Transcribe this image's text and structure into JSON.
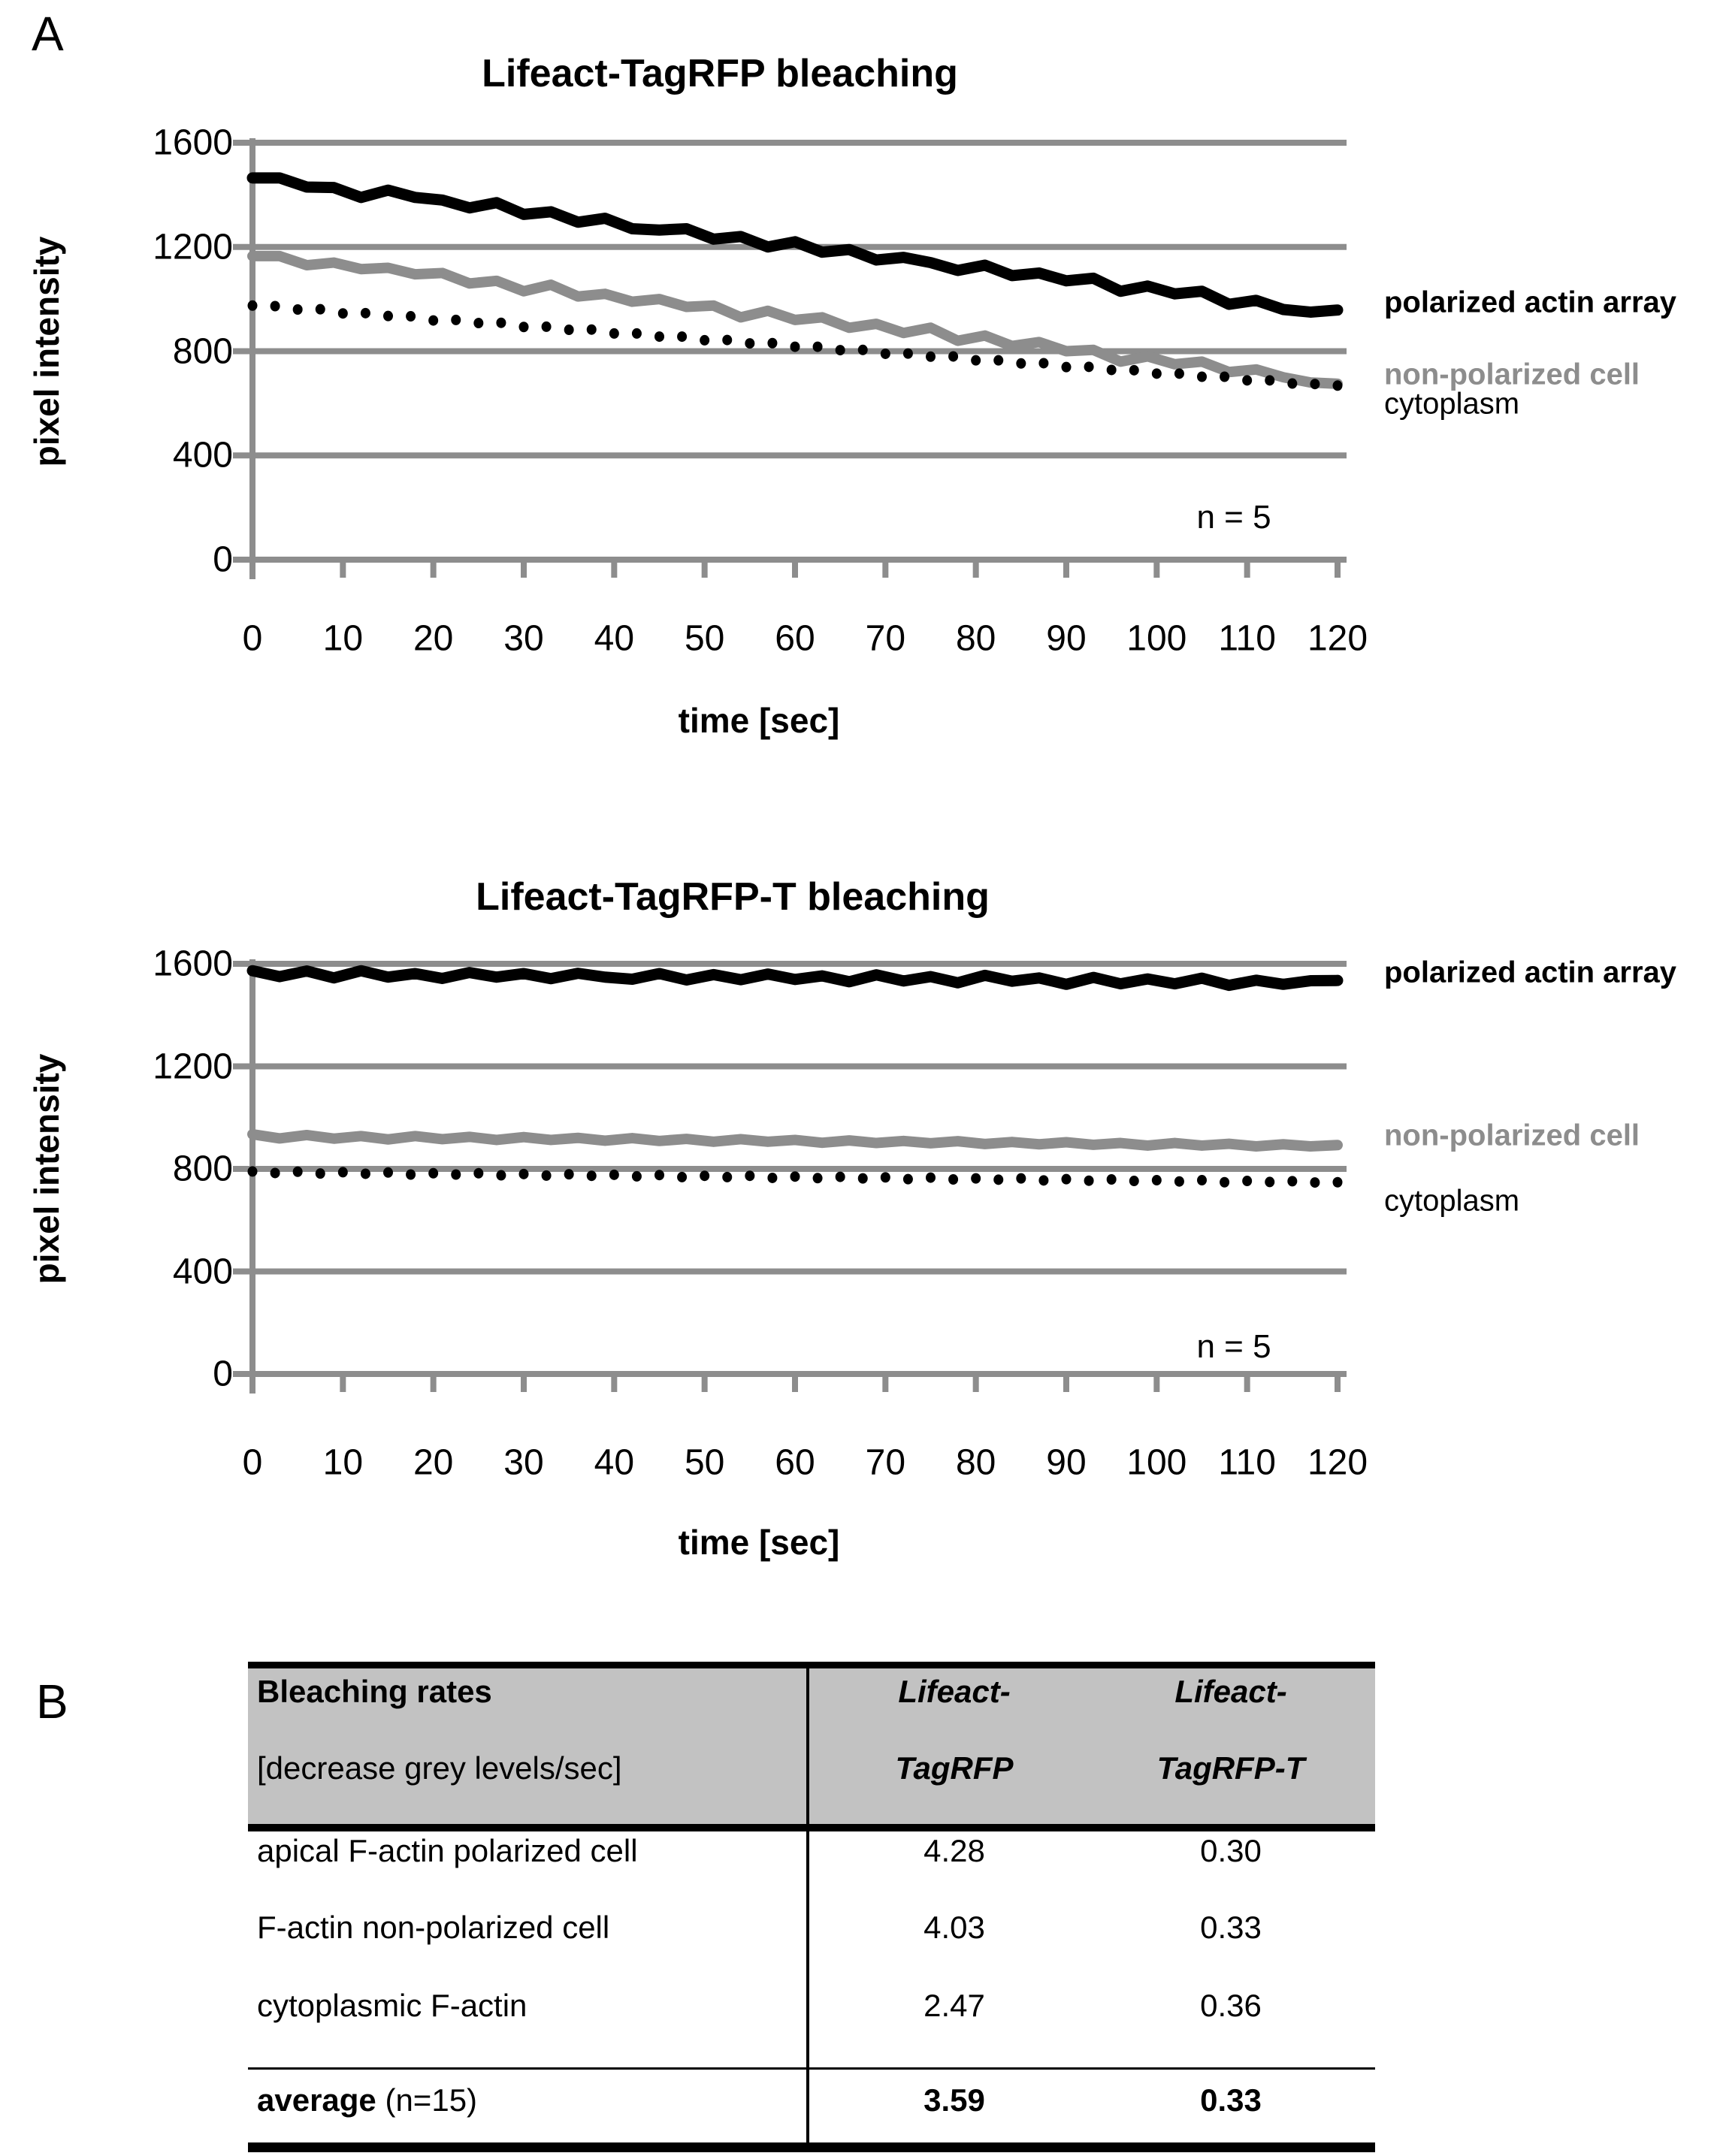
{
  "figure": {
    "panel_a": "A",
    "panel_b": "B"
  },
  "colors": {
    "black": "#000000",
    "gray_series": "#8d8d8d",
    "grid": "#8d8d8d",
    "table_header_bg": "#c2c2c2"
  },
  "chart_data": [
    {
      "type": "line",
      "title": "Lifeact-TagRFP bleaching",
      "xlabel": "time [sec]",
      "ylabel": "pixel intensity",
      "annotation": "n = 5",
      "xlim": [
        0,
        120
      ],
      "ylim": [
        0,
        1600
      ],
      "xticks": [
        0,
        10,
        20,
        30,
        40,
        50,
        60,
        70,
        80,
        90,
        100,
        110,
        120
      ],
      "yticks": [
        0,
        400,
        800,
        1200,
        1600
      ],
      "grid": "horizontal",
      "legend_position": "right",
      "series": [
        {
          "name": "polarized actin array",
          "style": "solid",
          "color": "#000000",
          "bold_label": true,
          "t0": 0,
          "dt": 3,
          "values": [
            1465,
            1465,
            1430,
            1428,
            1390,
            1418,
            1390,
            1380,
            1350,
            1370,
            1325,
            1335,
            1295,
            1310,
            1270,
            1265,
            1270,
            1230,
            1240,
            1200,
            1220,
            1180,
            1190,
            1150,
            1160,
            1140,
            1110,
            1130,
            1090,
            1100,
            1070,
            1080,
            1030,
            1050,
            1020,
            1030,
            980,
            995,
            960,
            950,
            958
          ]
        },
        {
          "name": "non-polarized cell",
          "style": "solid",
          "color": "#8d8d8d",
          "bold_label": true,
          "t0": 0,
          "dt": 3,
          "values": [
            1165,
            1165,
            1130,
            1140,
            1115,
            1120,
            1095,
            1100,
            1060,
            1070,
            1030,
            1055,
            1010,
            1020,
            990,
            1000,
            970,
            975,
            930,
            955,
            920,
            930,
            890,
            905,
            870,
            890,
            840,
            860,
            820,
            835,
            800,
            805,
            760,
            780,
            750,
            760,
            720,
            730,
            700,
            680,
            675
          ]
        },
        {
          "name": "cytoplasm",
          "style": "dotted",
          "color": "#000000",
          "bold_label": false,
          "t0": 0,
          "dt": 2.5,
          "values": [
            975,
            973,
            960,
            961,
            945,
            946,
            935,
            934,
            918,
            920,
            908,
            909,
            893,
            894,
            882,
            883,
            868,
            868,
            856,
            856,
            842,
            843,
            830,
            831,
            817,
            817,
            804,
            805,
            790,
            791,
            779,
            780,
            765,
            765,
            753,
            754,
            739,
            740,
            728,
            727,
            714,
            714,
            702,
            702,
            688,
            688,
            676,
            674,
            668
          ]
        }
      ]
    },
    {
      "type": "line",
      "title": "Lifeact-TagRFP-T bleaching",
      "xlabel": "time [sec]",
      "ylabel": "pixel intensity",
      "annotation": "n = 5",
      "xlim": [
        0,
        120
      ],
      "ylim": [
        0,
        1600
      ],
      "xticks": [
        0,
        10,
        20,
        30,
        40,
        50,
        60,
        70,
        80,
        90,
        100,
        110,
        120
      ],
      "yticks": [
        0,
        400,
        800,
        1200,
        1600
      ],
      "grid": "horizontal",
      "legend_position": "right",
      "series": [
        {
          "name": "polarized actin array",
          "style": "solid",
          "color": "#000000",
          "bold_label": true,
          "t0": 0,
          "dt": 3,
          "values": [
            1573,
            1550,
            1572,
            1545,
            1573,
            1548,
            1562,
            1543,
            1566,
            1548,
            1562,
            1542,
            1563,
            1548,
            1540,
            1562,
            1537,
            1558,
            1538,
            1560,
            1539,
            1553,
            1530,
            1557,
            1533,
            1550,
            1526,
            1555,
            1532,
            1545,
            1520,
            1547,
            1522,
            1541,
            1522,
            1544,
            1516,
            1536,
            1520,
            1534,
            1535
          ]
        },
        {
          "name": "non-polarized cell",
          "style": "solid",
          "color": "#8d8d8d",
          "bold_label": true,
          "t0": 0,
          "dt": 3,
          "values": [
            935,
            919,
            932,
            918,
            928,
            915,
            928,
            916,
            925,
            913,
            924,
            913,
            921,
            910,
            920,
            909,
            917,
            906,
            916,
            906,
            913,
            902,
            911,
            901,
            909,
            900,
            908,
            897,
            905,
            896,
            904,
            894,
            901,
            891,
            901,
            891,
            898,
            888,
            896,
            888,
            893
          ]
        },
        {
          "name": "cytoplasm",
          "style": "dotted",
          "color": "#000000",
          "bold_label": false,
          "t0": 0,
          "dt": 2.5,
          "values": [
            790,
            784,
            789,
            782,
            787,
            781,
            786,
            778,
            783,
            778,
            783,
            775,
            780,
            774,
            779,
            773,
            777,
            771,
            776,
            768,
            773,
            768,
            773,
            765,
            770,
            764,
            769,
            763,
            767,
            760,
            766,
            759,
            763,
            758,
            763,
            755,
            760,
            754,
            759,
            753,
            756,
            751,
            756,
            748,
            753,
            749,
            752,
            747,
            748
          ]
        }
      ]
    }
  ],
  "table": {
    "header": {
      "title": "Bleaching rates",
      "subtitle": "[decrease grey levels/sec]",
      "col2_line1": "Lifeact-",
      "col2_line2": "TagRFP",
      "col3_line1": "Lifeact-",
      "col3_line2": "TagRFP-T"
    },
    "rows": [
      {
        "label": "apical F-actin polarized cell",
        "tagrfp": "4.28",
        "tagrfp_t": "0.30"
      },
      {
        "label": "F-actin non-polarized cell",
        "tagrfp": "4.03",
        "tagrfp_t": "0.33"
      },
      {
        "label": "cytoplasmic F-actin",
        "tagrfp": "2.47",
        "tagrfp_t": "0.36"
      }
    ],
    "summary_row": {
      "label_bold": "average",
      "label_rest": " (n=15)",
      "tagrfp": "3.59",
      "tagrfp_t": "0.33"
    }
  }
}
